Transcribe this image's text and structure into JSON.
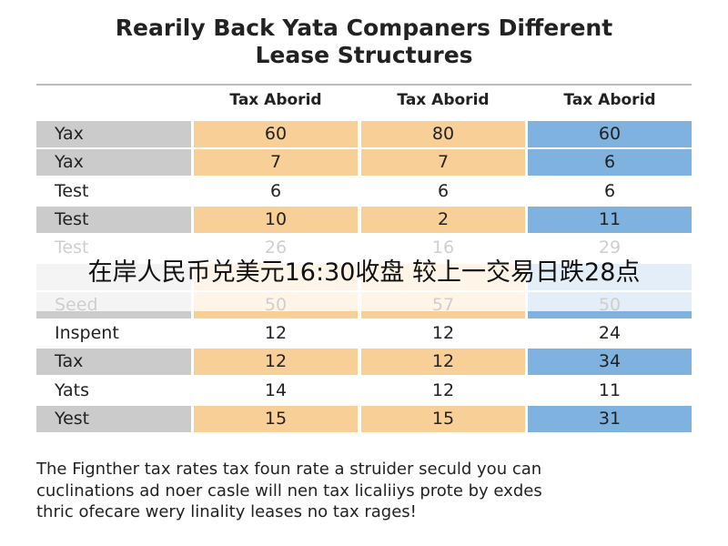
{
  "title": [
    "Rearily Back Yata Companers Different",
    "Lease Structures"
  ],
  "table": {
    "header": [
      "Tax Aborid",
      "Tax Aborid",
      "Tax Aborid"
    ],
    "rows": [
      [
        "Yax",
        60,
        80,
        60
      ],
      [
        "Yax",
        7,
        7,
        6
      ],
      [
        "Test",
        6,
        6,
        6
      ],
      [
        "Test",
        10,
        2,
        11
      ],
      [
        "Test",
        26,
        16,
        29
      ],
      [
        "Seed",
        50,
        57,
        50
      ],
      [
        "Inspent",
        12,
        12,
        24
      ],
      [
        "Tax",
        12,
        12,
        34
      ],
      [
        "Yats",
        14,
        12,
        11
      ],
      [
        "Yest",
        15,
        15,
        31
      ]
    ]
  },
  "footer": [
    "The Fignther tax rates tax foun rate a struider seculd you can",
    "cuclinations ad noer casle will nen tax licaliiys prote by exdes",
    "thric ofecare wery linality leases no tax rages!"
  ],
  "banner": "在岸人民币兑美元16:30收盘 较上一交易日跌28点"
}
